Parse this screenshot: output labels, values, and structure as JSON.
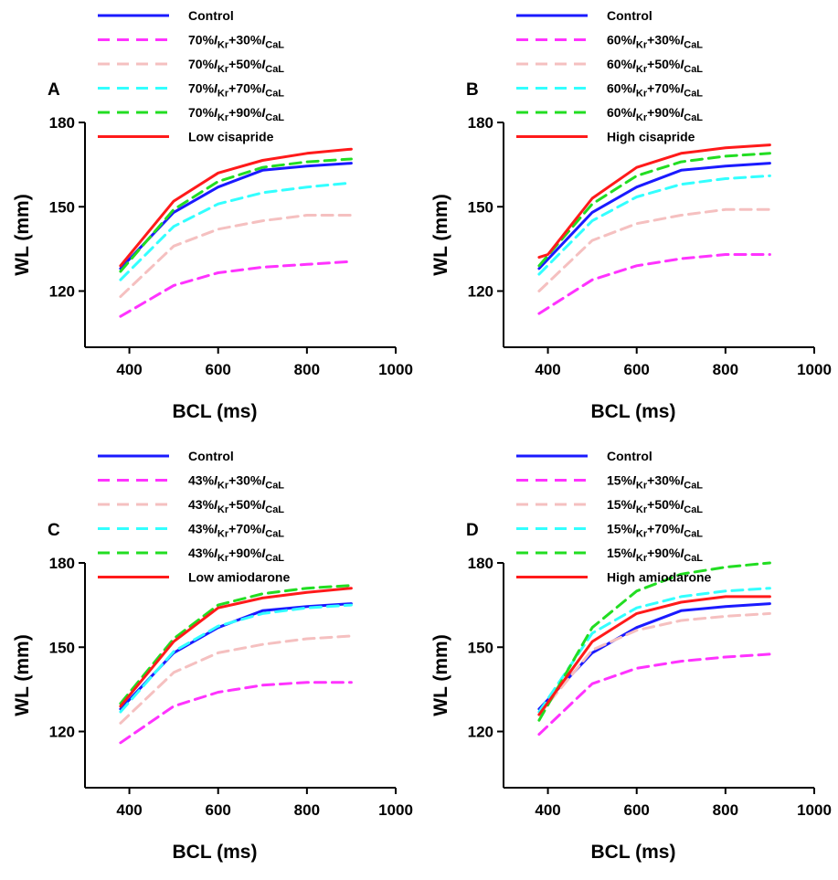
{
  "chart_data": [
    {
      "type": "line",
      "panel": "A",
      "xlabel": "BCL (ms)",
      "ylabel": "WL (mm)",
      "xlim": [
        300,
        1000
      ],
      "ylim": [
        100,
        180
      ],
      "xticks": [
        400,
        600,
        800,
        1000
      ],
      "yticks": [
        120,
        150,
        180
      ],
      "legend_placement": "top",
      "series": [
        {
          "name": "Control",
          "label": {
            "pre": "Control",
            "ikr": "",
            "ical": ""
          },
          "color": "#1a1aff",
          "dash": "solid",
          "x": [
            380,
            500,
            600,
            700,
            800,
            900
          ],
          "y": [
            128,
            148,
            157,
            163,
            164.5,
            165.5
          ]
        },
        {
          "name": "70%IKr+30%ICaL",
          "label": {
            "pre": "70%",
            "ikr": "Kr",
            "ical": "CaL"
          },
          "color": "#ff33ff",
          "dash": "dashed",
          "x": [
            380,
            500,
            600,
            700,
            800,
            900
          ],
          "y": [
            111,
            122,
            126.5,
            128.5,
            129.5,
            130.5
          ]
        },
        {
          "name": "70%IKr+50%ICaL",
          "label": {
            "pre": "70%",
            "ikr": "Kr",
            "ical": "CaL"
          },
          "color": "#f5c0c0",
          "dash": "dashed",
          "x": [
            380,
            500,
            600,
            700,
            800,
            900
          ],
          "y": [
            118,
            136,
            142,
            145,
            147,
            147
          ]
        },
        {
          "name": "70%IKr+70%ICaL",
          "label": {
            "pre": "70%",
            "ikr": "Kr",
            "ical": "CaL"
          },
          "color": "#33ffff",
          "dash": "dashed",
          "x": [
            380,
            500,
            600,
            700,
            800,
            900
          ],
          "y": [
            124,
            143,
            151,
            155,
            157,
            158.5
          ]
        },
        {
          "name": "70%IKr+90%ICaL",
          "label": {
            "pre": "70%",
            "ikr": "Kr",
            "ical": "CaL"
          },
          "color": "#22dd22",
          "dash": "dashed",
          "x": [
            380,
            500,
            600,
            700,
            800,
            900
          ],
          "y": [
            127,
            149,
            159,
            164,
            166,
            167
          ]
        },
        {
          "name": "Low cisapride",
          "label": {
            "pre": "Low cisapride",
            "ikr": "",
            "ical": ""
          },
          "color": "#ff1a1a",
          "dash": "solid",
          "x": [
            380,
            500,
            600,
            700,
            800,
            900
          ],
          "y": [
            129,
            152,
            162,
            166.5,
            169,
            170.5
          ]
        }
      ]
    },
    {
      "type": "line",
      "panel": "B",
      "xlabel": "BCL (ms)",
      "ylabel": "WL (mm)",
      "xlim": [
        300,
        1000
      ],
      "ylim": [
        100,
        180
      ],
      "xticks": [
        400,
        600,
        800,
        1000
      ],
      "yticks": [
        120,
        150,
        180
      ],
      "legend_placement": "top",
      "series": [
        {
          "name": "Control",
          "label": {
            "pre": "Control",
            "ikr": "",
            "ical": ""
          },
          "color": "#1a1aff",
          "dash": "solid",
          "x": [
            380,
            500,
            600,
            700,
            800,
            900
          ],
          "y": [
            128,
            148,
            157,
            163,
            164.5,
            165.5
          ]
        },
        {
          "name": "60%IKr+30%ICaL",
          "label": {
            "pre": "60%",
            "ikr": "Kr",
            "ical": "CaL"
          },
          "color": "#ff33ff",
          "dash": "dashed",
          "x": [
            380,
            500,
            600,
            700,
            800,
            900
          ],
          "y": [
            112,
            124,
            129,
            131.5,
            133,
            133
          ]
        },
        {
          "name": "60%IKr+50%ICaL",
          "label": {
            "pre": "60%",
            "ikr": "Kr",
            "ical": "CaL"
          },
          "color": "#f5c0c0",
          "dash": "dashed",
          "x": [
            380,
            500,
            600,
            700,
            800,
            900
          ],
          "y": [
            120,
            138,
            144,
            147,
            149,
            149
          ]
        },
        {
          "name": "60%IKr+70%ICaL",
          "label": {
            "pre": "60%",
            "ikr": "Kr",
            "ical": "CaL"
          },
          "color": "#33ffff",
          "dash": "dashed",
          "x": [
            380,
            500,
            600,
            700,
            800,
            900
          ],
          "y": [
            126,
            145,
            153.5,
            158,
            160,
            161
          ]
        },
        {
          "name": "60%IKr+90%ICaL",
          "label": {
            "pre": "60%",
            "ikr": "Kr",
            "ical": "CaL"
          },
          "color": "#22dd22",
          "dash": "dashed",
          "x": [
            380,
            500,
            600,
            700,
            800,
            900
          ],
          "y": [
            129,
            151,
            161,
            166,
            168,
            169
          ]
        },
        {
          "name": "High cisapride",
          "label": {
            "pre": "High cisapride",
            "ikr": "",
            "ical": ""
          },
          "color": "#ff1a1a",
          "dash": "solid",
          "x": [
            380,
            400,
            500,
            600,
            700,
            800,
            900
          ],
          "y": [
            132,
            133,
            153,
            164,
            169,
            171,
            172
          ]
        }
      ]
    },
    {
      "type": "line",
      "panel": "C",
      "xlabel": "BCL (ms)",
      "ylabel": "WL (mm)",
      "xlim": [
        300,
        1000
      ],
      "ylim": [
        100,
        180
      ],
      "xticks": [
        400,
        600,
        800,
        1000
      ],
      "yticks": [
        120,
        150,
        180
      ],
      "legend_placement": "top",
      "series": [
        {
          "name": "Control",
          "label": {
            "pre": "Control",
            "ikr": "",
            "ical": ""
          },
          "color": "#1a1aff",
          "dash": "solid",
          "x": [
            380,
            500,
            600,
            700,
            800,
            900
          ],
          "y": [
            128,
            148,
            157,
            163,
            164.5,
            165.5
          ]
        },
        {
          "name": "43%IKr+30%ICaL",
          "label": {
            "pre": "43%",
            "ikr": "Kr",
            "ical": "CaL"
          },
          "color": "#ff33ff",
          "dash": "dashed",
          "x": [
            380,
            500,
            600,
            700,
            800,
            900
          ],
          "y": [
            116,
            129,
            134,
            136.5,
            137.5,
            137.5
          ]
        },
        {
          "name": "43%IKr+50%ICaL",
          "label": {
            "pre": "43%",
            "ikr": "Kr",
            "ical": "CaL"
          },
          "color": "#f5c0c0",
          "dash": "dashed",
          "x": [
            380,
            500,
            600,
            700,
            800,
            900
          ],
          "y": [
            123,
            141,
            148,
            151,
            153,
            154
          ]
        },
        {
          "name": "43%IKr+70%ICaL",
          "label": {
            "pre": "43%",
            "ikr": "Kr",
            "ical": "CaL"
          },
          "color": "#33ffff",
          "dash": "dashed",
          "x": [
            380,
            500,
            600,
            700,
            800,
            900
          ],
          "y": [
            127,
            148.5,
            157.5,
            162,
            164,
            165
          ]
        },
        {
          "name": "43%IKr+90%ICaL",
          "label": {
            "pre": "43%",
            "ikr": "Kr",
            "ical": "CaL"
          },
          "color": "#22dd22",
          "dash": "dashed",
          "x": [
            380,
            500,
            600,
            700,
            800,
            900
          ],
          "y": [
            130,
            153,
            165,
            169,
            171,
            172
          ]
        },
        {
          "name": "Low amiodarone",
          "label": {
            "pre": "Low amiodarone",
            "ikr": "",
            "ical": ""
          },
          "color": "#ff1a1a",
          "dash": "solid",
          "x": [
            380,
            500,
            600,
            700,
            800,
            900
          ],
          "y": [
            129,
            152,
            164,
            167.5,
            169.5,
            171
          ]
        }
      ]
    },
    {
      "type": "line",
      "panel": "D",
      "xlabel": "BCL (ms)",
      "ylabel": "WL (mm)",
      "xlim": [
        300,
        1000
      ],
      "ylim": [
        100,
        180
      ],
      "xticks": [
        400,
        600,
        800,
        1000
      ],
      "yticks": [
        120,
        150,
        180
      ],
      "legend_placement": "top",
      "series": [
        {
          "name": "Control",
          "label": {
            "pre": "Control",
            "ikr": "",
            "ical": ""
          },
          "color": "#1a1aff",
          "dash": "solid",
          "x": [
            380,
            500,
            600,
            700,
            800,
            900
          ],
          "y": [
            128,
            148,
            157,
            163,
            164.5,
            165.5
          ]
        },
        {
          "name": "15%IKr+30%ICaL",
          "label": {
            "pre": "15%",
            "ikr": "Kr",
            "ical": "CaL"
          },
          "color": "#ff33ff",
          "dash": "dashed",
          "x": [
            380,
            500,
            600,
            700,
            800,
            900
          ],
          "y": [
            119,
            137,
            142.5,
            145,
            146.5,
            147.5
          ]
        },
        {
          "name": "15%IKr+50%ICaL",
          "label": {
            "pre": "15%",
            "ikr": "Kr",
            "ical": "CaL"
          },
          "color": "#f5c0c0",
          "dash": "dashed",
          "x": [
            380,
            500,
            600,
            700,
            800,
            900
          ],
          "y": [
            126,
            149,
            156,
            159.5,
            161,
            162
          ]
        },
        {
          "name": "15%IKr+70%ICaL",
          "label": {
            "pre": "15%",
            "ikr": "Kr",
            "ical": "CaL"
          },
          "color": "#33ffff",
          "dash": "dashed",
          "x": [
            380,
            500,
            600,
            700,
            800,
            900
          ],
          "y": [
            127,
            155,
            164,
            168,
            170,
            171
          ]
        },
        {
          "name": "15%IKr+90%ICaL",
          "label": {
            "pre": "15%",
            "ikr": "Kr",
            "ical": "CaL"
          },
          "color": "#22dd22",
          "dash": "dashed",
          "x": [
            380,
            500,
            600,
            700,
            800,
            900
          ],
          "y": [
            124,
            157,
            170,
            176,
            178.5,
            180
          ]
        },
        {
          "name": "High amiodarone",
          "label": {
            "pre": "High amiodarone",
            "ikr": "",
            "ical": ""
          },
          "color": "#ff1a1a",
          "dash": "solid",
          "x": [
            380,
            500,
            600,
            700,
            800,
            900
          ],
          "y": [
            126,
            152,
            162,
            166,
            168,
            168
          ]
        }
      ]
    }
  ]
}
